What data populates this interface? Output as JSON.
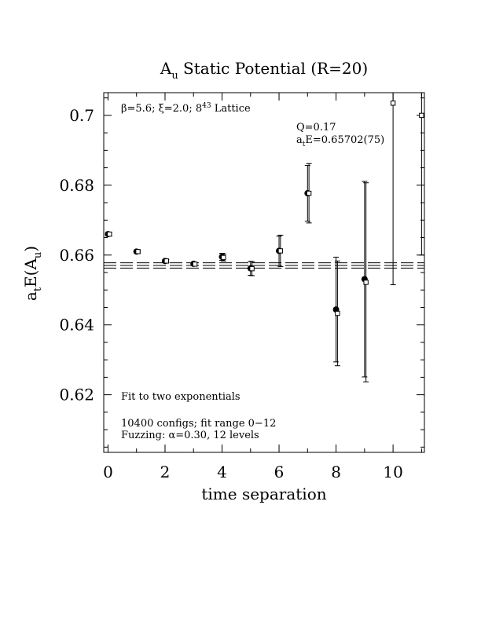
{
  "chart_data": {
    "type": "scatter",
    "title": "A_u Static Potential (R=20)",
    "title_main": "A",
    "title_sub": "u",
    "title_rest": " Static Potential (R=20)",
    "xlabel": "time separation",
    "ylabel": "a_tE(A_u)",
    "ylabel_parts": [
      "a",
      "t",
      "E(A",
      "u",
      ")"
    ],
    "xlim": [
      -0.15,
      11.1
    ],
    "ylim": [
      0.6035,
      0.7065
    ],
    "x_ticks": [
      0,
      2,
      4,
      6,
      8,
      10
    ],
    "x_tick_labels": [
      "0",
      "2",
      "4",
      "6",
      "8",
      "10"
    ],
    "y_ticks": [
      0.62,
      0.64,
      0.66,
      0.68,
      0.7
    ],
    "y_tick_labels": [
      "0.62",
      "0.64",
      "0.66",
      "0.68",
      "0.7"
    ],
    "grid": false,
    "legend": "none",
    "fit": {
      "value": 0.65702,
      "upper": 0.65777,
      "lower": 0.65627,
      "style": "dashed",
      "tmin": 0,
      "tmax": 12
    },
    "series": [
      {
        "marker": "filled-circle",
        "x": [
          0,
          1,
          2,
          3,
          4,
          5,
          6,
          7,
          8,
          9
        ],
        "y": [
          0.666,
          0.661,
          0.6583,
          0.6575,
          0.6595,
          0.6562,
          0.6612,
          0.6777,
          0.6444,
          0.6531
        ],
        "err": [
          0.0005,
          0.0004,
          0.0004,
          0.0004,
          0.001,
          0.002,
          0.0042,
          0.008,
          0.015,
          0.028
        ]
      },
      {
        "marker": "open-square",
        "x": [
          0.05,
          1.05,
          2.05,
          3.05,
          4.05,
          5.05,
          6.05,
          7.05,
          8.05,
          9.05,
          10.0,
          11.0
        ],
        "y": [
          0.666,
          0.661,
          0.6583,
          0.6574,
          0.6593,
          0.6561,
          0.6612,
          0.6777,
          0.6433,
          0.6522,
          0.7035,
          0.7
        ],
        "err": [
          0.0005,
          0.0004,
          0.0004,
          0.0004,
          0.001,
          0.002,
          0.0045,
          0.0085,
          0.015,
          0.0285,
          0.052,
          0.04
        ]
      }
    ],
    "annotations": {
      "params_beta": "β=5.6; ξ=2.0; 8",
      "params_exp": "4",
      "params_rest": "3",
      "params_tail": " Lattice",
      "q_value": "Q=0.17",
      "energy_main": "a",
      "energy_sub": "t",
      "energy_rest": "E=0.65702(75)",
      "fit_label": "Fit to two exponentials",
      "configs": "10400 configs; fit range 0−12",
      "fuzzing": "Fuzzing: α=0.30, 12 levels"
    }
  }
}
